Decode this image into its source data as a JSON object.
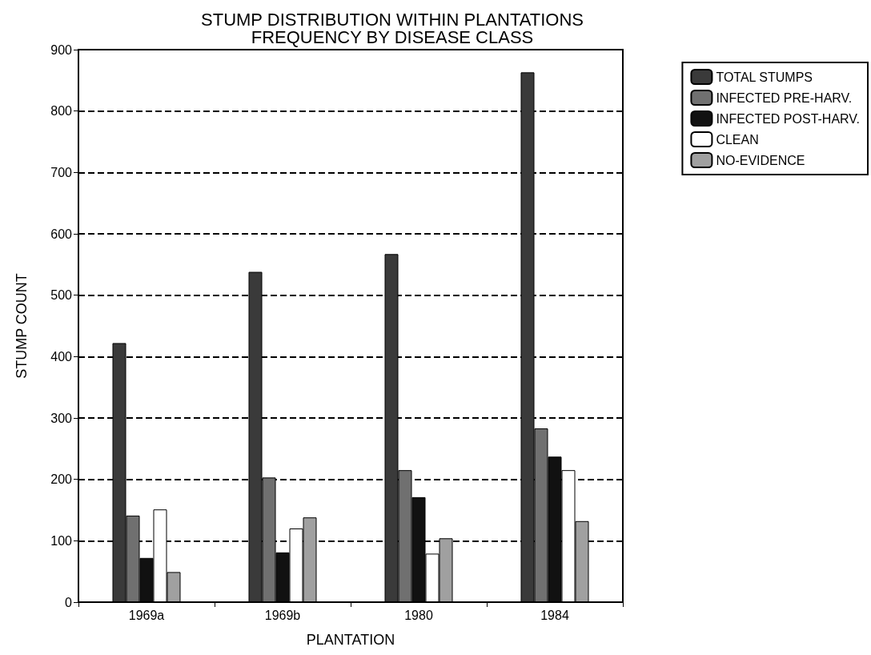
{
  "chart_data": {
    "type": "bar",
    "title": "STUMP DISTRIBUTION WITHIN PLANTATIONS\nFREQUENCY BY DISEASE CLASS",
    "xlabel": "PLANTATION",
    "ylabel": "STUMP COUNT",
    "categories": [
      "1969a",
      "1969b",
      "1980",
      "1984"
    ],
    "series": [
      {
        "name": "TOTAL STUMPS",
        "color": "#3a3a3a",
        "values": [
          422,
          538,
          567,
          863
        ]
      },
      {
        "name": "INFECTED PRE-HARV.",
        "color": "#707070",
        "values": [
          141,
          203,
          215,
          283
        ]
      },
      {
        "name": "INFECTED POST-HARV.",
        "color": "#111111",
        "values": [
          72,
          81,
          171,
          237
        ]
      },
      {
        "name": "CLEAN",
        "color": "#ffffff",
        "values": [
          151,
          120,
          79,
          215
        ]
      },
      {
        "name": "NO-EVIDENCE",
        "color": "#a0a0a0",
        "values": [
          49,
          138,
          104,
          132
        ]
      }
    ],
    "ylim": [
      0,
      900
    ],
    "yticks": [
      0,
      100,
      200,
      300,
      400,
      500,
      600,
      700,
      800,
      900
    ],
    "grid": "y",
    "legend": "top right",
    "line_style": "dashed"
  }
}
